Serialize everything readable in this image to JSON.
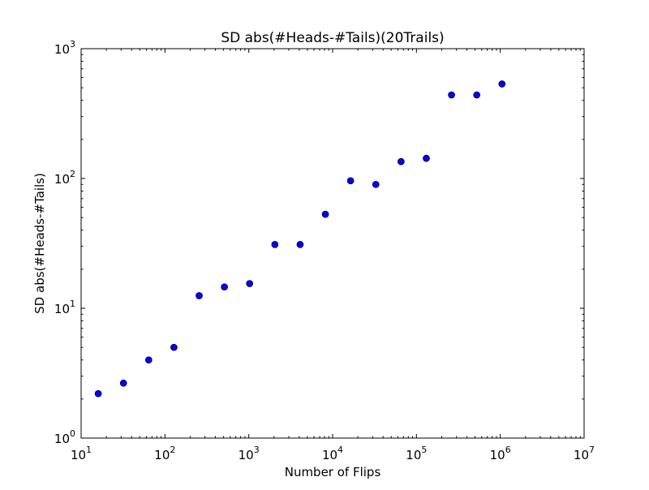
{
  "chart_data": {
    "type": "scatter",
    "title": "SD abs(#Heads-#Tails)(20Trails)",
    "xlabel": "Number of Flips",
    "ylabel": "SD abs(#Heads-#Tails)",
    "xscale": "log",
    "yscale": "log",
    "xlim": [
      10,
      10000000
    ],
    "ylim": [
      1,
      1000
    ],
    "grid": false,
    "legend": "none",
    "marker_color": "#0000ff",
    "x_ticks": [
      {
        "base": "10",
        "exp": "1",
        "value": 10
      },
      {
        "base": "10",
        "exp": "2",
        "value": 100
      },
      {
        "base": "10",
        "exp": "3",
        "value": 1000
      },
      {
        "base": "10",
        "exp": "4",
        "value": 10000
      },
      {
        "base": "10",
        "exp": "5",
        "value": 100000
      },
      {
        "base": "10",
        "exp": "6",
        "value": 1000000
      },
      {
        "base": "10",
        "exp": "7",
        "value": 10000000
      }
    ],
    "y_ticks": [
      {
        "base": "10",
        "exp": "0",
        "value": 1
      },
      {
        "base": "10",
        "exp": "1",
        "value": 10
      },
      {
        "base": "10",
        "exp": "2",
        "value": 100
      },
      {
        "base": "10",
        "exp": "3",
        "value": 1000
      }
    ],
    "x": [
      16,
      32,
      64,
      128,
      256,
      512,
      1024,
      2048,
      4096,
      8192,
      16384,
      32768,
      65536,
      131072,
      262144,
      524288,
      1048576
    ],
    "y": [
      2.2,
      2.65,
      4.0,
      5.0,
      12.5,
      14.6,
      15.5,
      31,
      31,
      53,
      96,
      90,
      135,
      143,
      440,
      440,
      535
    ]
  }
}
